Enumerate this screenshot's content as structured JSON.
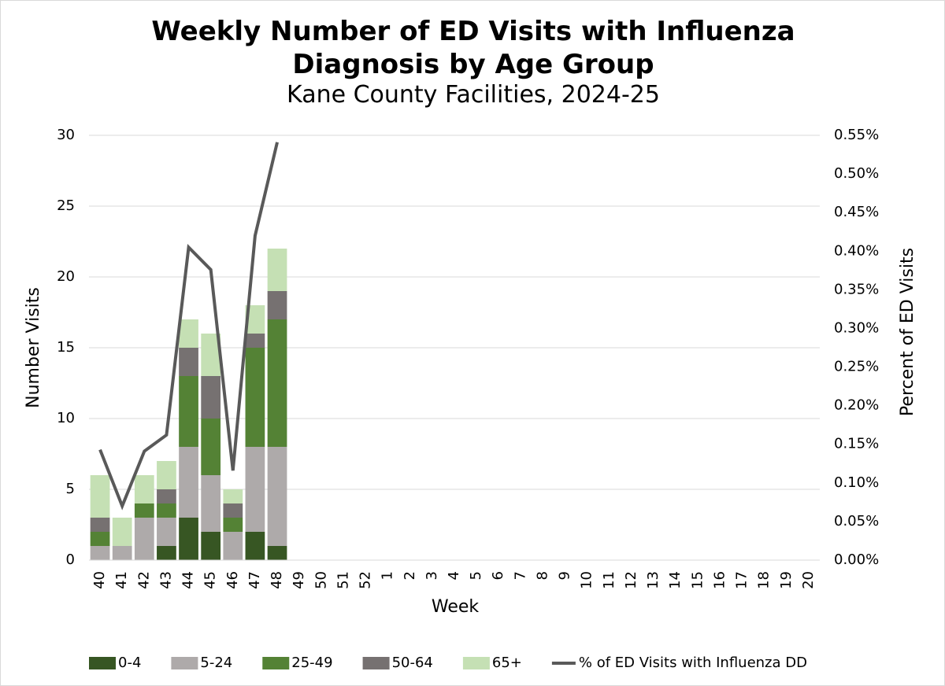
{
  "chart_data": {
    "type": "stacked-bar-line",
    "title": "Weekly Number of ED Visits with Influenza Diagnosis by Age Group",
    "subtitle": "Kane County Facilities, 2024-25",
    "x_label": "Week",
    "y_label": "Number Visits",
    "y2_label": "Percent of ED Visits",
    "categories": [
      "40",
      "41",
      "42",
      "43",
      "44",
      "45",
      "46",
      "47",
      "48",
      "49",
      "50",
      "51",
      "52",
      "1",
      "2",
      "3",
      "4",
      "5",
      "6",
      "7",
      "8",
      "9",
      "10",
      "11",
      "12",
      "13",
      "14",
      "15",
      "16",
      "17",
      "18",
      "19",
      "20"
    ],
    "ylim": [
      0,
      30
    ],
    "yticks": [
      0,
      5,
      10,
      15,
      20,
      25,
      30
    ],
    "y2lim": [
      0,
      0.55
    ],
    "y2ticks": [
      {
        "value": 0,
        "label": "0.00%"
      },
      {
        "value": 0.05,
        "label": "0.05%"
      },
      {
        "value": 0.1,
        "label": "0.10%"
      },
      {
        "value": 0.15,
        "label": "0.15%"
      },
      {
        "value": 0.2,
        "label": "0.20%"
      },
      {
        "value": 0.25,
        "label": "0.25%"
      },
      {
        "value": 0.3,
        "label": "0.30%"
      },
      {
        "value": 0.35,
        "label": "0.35%"
      },
      {
        "value": 0.4,
        "label": "0.40%"
      },
      {
        "value": 0.45,
        "label": "0.45%"
      },
      {
        "value": 0.5,
        "label": "0.50%"
      },
      {
        "value": 0.55,
        "label": "0.55%"
      }
    ],
    "grid": true,
    "legend": "bottom",
    "series": [
      {
        "name": "0-4",
        "color": "#375623",
        "values": [
          0,
          0,
          0,
          1,
          3,
          2,
          0,
          2,
          1,
          null,
          null,
          null,
          null,
          null,
          null,
          null,
          null,
          null,
          null,
          null,
          null,
          null,
          null,
          null,
          null,
          null,
          null,
          null,
          null,
          null,
          null,
          null,
          null
        ]
      },
      {
        "name": "5-24",
        "color": "#aeaaaa",
        "values": [
          1,
          1,
          3,
          2,
          5,
          4,
          2,
          6,
          7,
          null,
          null,
          null,
          null,
          null,
          null,
          null,
          null,
          null,
          null,
          null,
          null,
          null,
          null,
          null,
          null,
          null,
          null,
          null,
          null,
          null,
          null,
          null,
          null
        ]
      },
      {
        "name": "25-49",
        "color": "#548235",
        "values": [
          1,
          0,
          1,
          1,
          5,
          4,
          1,
          7,
          9,
          null,
          null,
          null,
          null,
          null,
          null,
          null,
          null,
          null,
          null,
          null,
          null,
          null,
          null,
          null,
          null,
          null,
          null,
          null,
          null,
          null,
          null,
          null,
          null
        ]
      },
      {
        "name": "50-64",
        "color": "#767171",
        "values": [
          1,
          0,
          0,
          1,
          2,
          3,
          1,
          1,
          2,
          null,
          null,
          null,
          null,
          null,
          null,
          null,
          null,
          null,
          null,
          null,
          null,
          null,
          null,
          null,
          null,
          null,
          null,
          null,
          null,
          null,
          null,
          null,
          null
        ]
      },
      {
        "name": "65+",
        "color": "#c5e0b4",
        "values": [
          3,
          2,
          2,
          2,
          2,
          3,
          1,
          2,
          3,
          null,
          null,
          null,
          null,
          null,
          null,
          null,
          null,
          null,
          null,
          null,
          null,
          null,
          null,
          null,
          null,
          null,
          null,
          null,
          null,
          null,
          null,
          null,
          null
        ]
      },
      {
        "name": "% of ED Visits with Influenza DD",
        "color": "#595959",
        "axis": "y2",
        "line": true,
        "values": [
          0.143,
          0.07,
          0.141,
          0.162,
          0.405,
          0.376,
          0.116,
          0.42,
          0.541,
          null,
          null,
          null,
          null,
          null,
          null,
          null,
          null,
          null,
          null,
          null,
          null,
          null,
          null,
          null,
          null,
          null,
          null,
          null,
          null,
          null,
          null,
          null,
          null
        ]
      }
    ]
  }
}
